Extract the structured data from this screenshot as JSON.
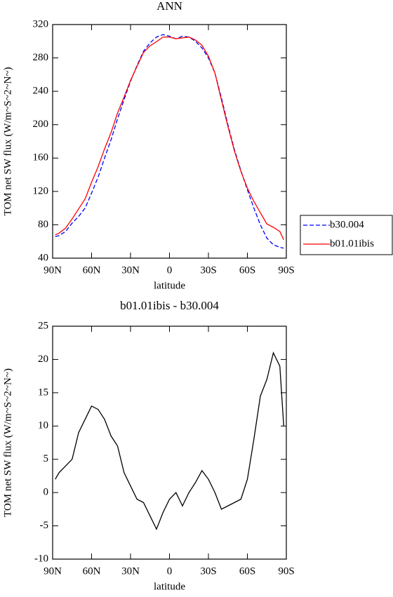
{
  "chart_data": [
    {
      "type": "line",
      "title": "ANN",
      "xlabel": "latitude",
      "ylabel": "TOM net SW flux (W/m~S~2~N~)",
      "x": [
        88,
        85,
        80,
        75,
        70,
        65,
        60,
        55,
        50,
        45,
        40,
        35,
        30,
        25,
        20,
        15,
        10,
        5,
        0,
        -5,
        -10,
        -15,
        -20,
        -25,
        -30,
        -35,
        -40,
        -45,
        -50,
        -55,
        -60,
        -65,
        -70,
        -75,
        -80,
        -85,
        -88
      ],
      "series": [
        {
          "name": "b30.004",
          "color": "#0000ff",
          "dash": true,
          "values": [
            66,
            67,
            72,
            82,
            90,
            100,
            118,
            137,
            160,
            182,
            207,
            230,
            252,
            271,
            288,
            298,
            305,
            308,
            306,
            303,
            306,
            305,
            300,
            292,
            280,
            262,
            232,
            200,
            170,
            145,
            122,
            100,
            80,
            64,
            56,
            53,
            52
          ]
        },
        {
          "name": "b01.01ibis",
          "color": "#ff0000",
          "dash": false,
          "values": [
            68,
            70,
            76,
            87,
            99,
            111,
            131,
            149.5,
            171,
            190.5,
            214,
            233,
            253,
            270,
            286.5,
            294.5,
            299.5,
            305,
            305,
            303,
            304,
            305,
            301.5,
            295.3,
            282,
            262,
            229.5,
            198,
            168.5,
            144,
            124,
            108,
            94.5,
            81,
            77,
            72,
            62
          ]
        }
      ],
      "xlim": [
        90,
        -90
      ],
      "xticks": [
        {
          "value": 90,
          "label": "90N"
        },
        {
          "value": 60,
          "label": "60N"
        },
        {
          "value": 30,
          "label": "30N"
        },
        0,
        {
          "value": -30,
          "label": "30S"
        },
        {
          "value": -60,
          "label": "60S"
        },
        {
          "value": -90,
          "label": "90S"
        }
      ],
      "ylim": [
        40,
        320
      ],
      "yticks": [
        40,
        80,
        120,
        160,
        200,
        240,
        280,
        320
      ],
      "legend": "right"
    },
    {
      "type": "line",
      "title": "b01.01ibis - b30.004",
      "xlabel": "latitude",
      "ylabel": "TOM net SW flux (W/m~S~2~N~)",
      "x": [
        88,
        85,
        80,
        75,
        70,
        65,
        60,
        55,
        50,
        45,
        40,
        35,
        30,
        25,
        20,
        15,
        10,
        5,
        0,
        -5,
        -10,
        -15,
        -20,
        -25,
        -30,
        -35,
        -40,
        -45,
        -50,
        -55,
        -60,
        -65,
        -70,
        -75,
        -80,
        -85,
        -88
      ],
      "values": [
        2,
        3,
        4,
        5,
        9,
        11,
        13,
        12.5,
        11,
        8.5,
        7,
        3,
        1,
        -1,
        -1.5,
        -3.5,
        -5.5,
        -3,
        -1,
        0,
        -2,
        0,
        1.5,
        3.3,
        2,
        0,
        -2.5,
        -2,
        -1.5,
        -1,
        2,
        8,
        14.5,
        17,
        21,
        19,
        10
      ],
      "color": "#000000",
      "xlim": [
        90,
        -90
      ],
      "xticks": [
        {
          "value": 90,
          "label": "90N"
        },
        {
          "value": 60,
          "label": "60N"
        },
        {
          "value": 30,
          "label": "30N"
        },
        0,
        {
          "value": -30,
          "label": "30S"
        },
        {
          "value": -60,
          "label": "60S"
        },
        {
          "value": -90,
          "label": "90S"
        }
      ],
      "ylim": [
        -10,
        25
      ],
      "yticks": [
        -10,
        -5,
        0,
        5,
        10,
        15,
        20,
        25
      ]
    }
  ]
}
